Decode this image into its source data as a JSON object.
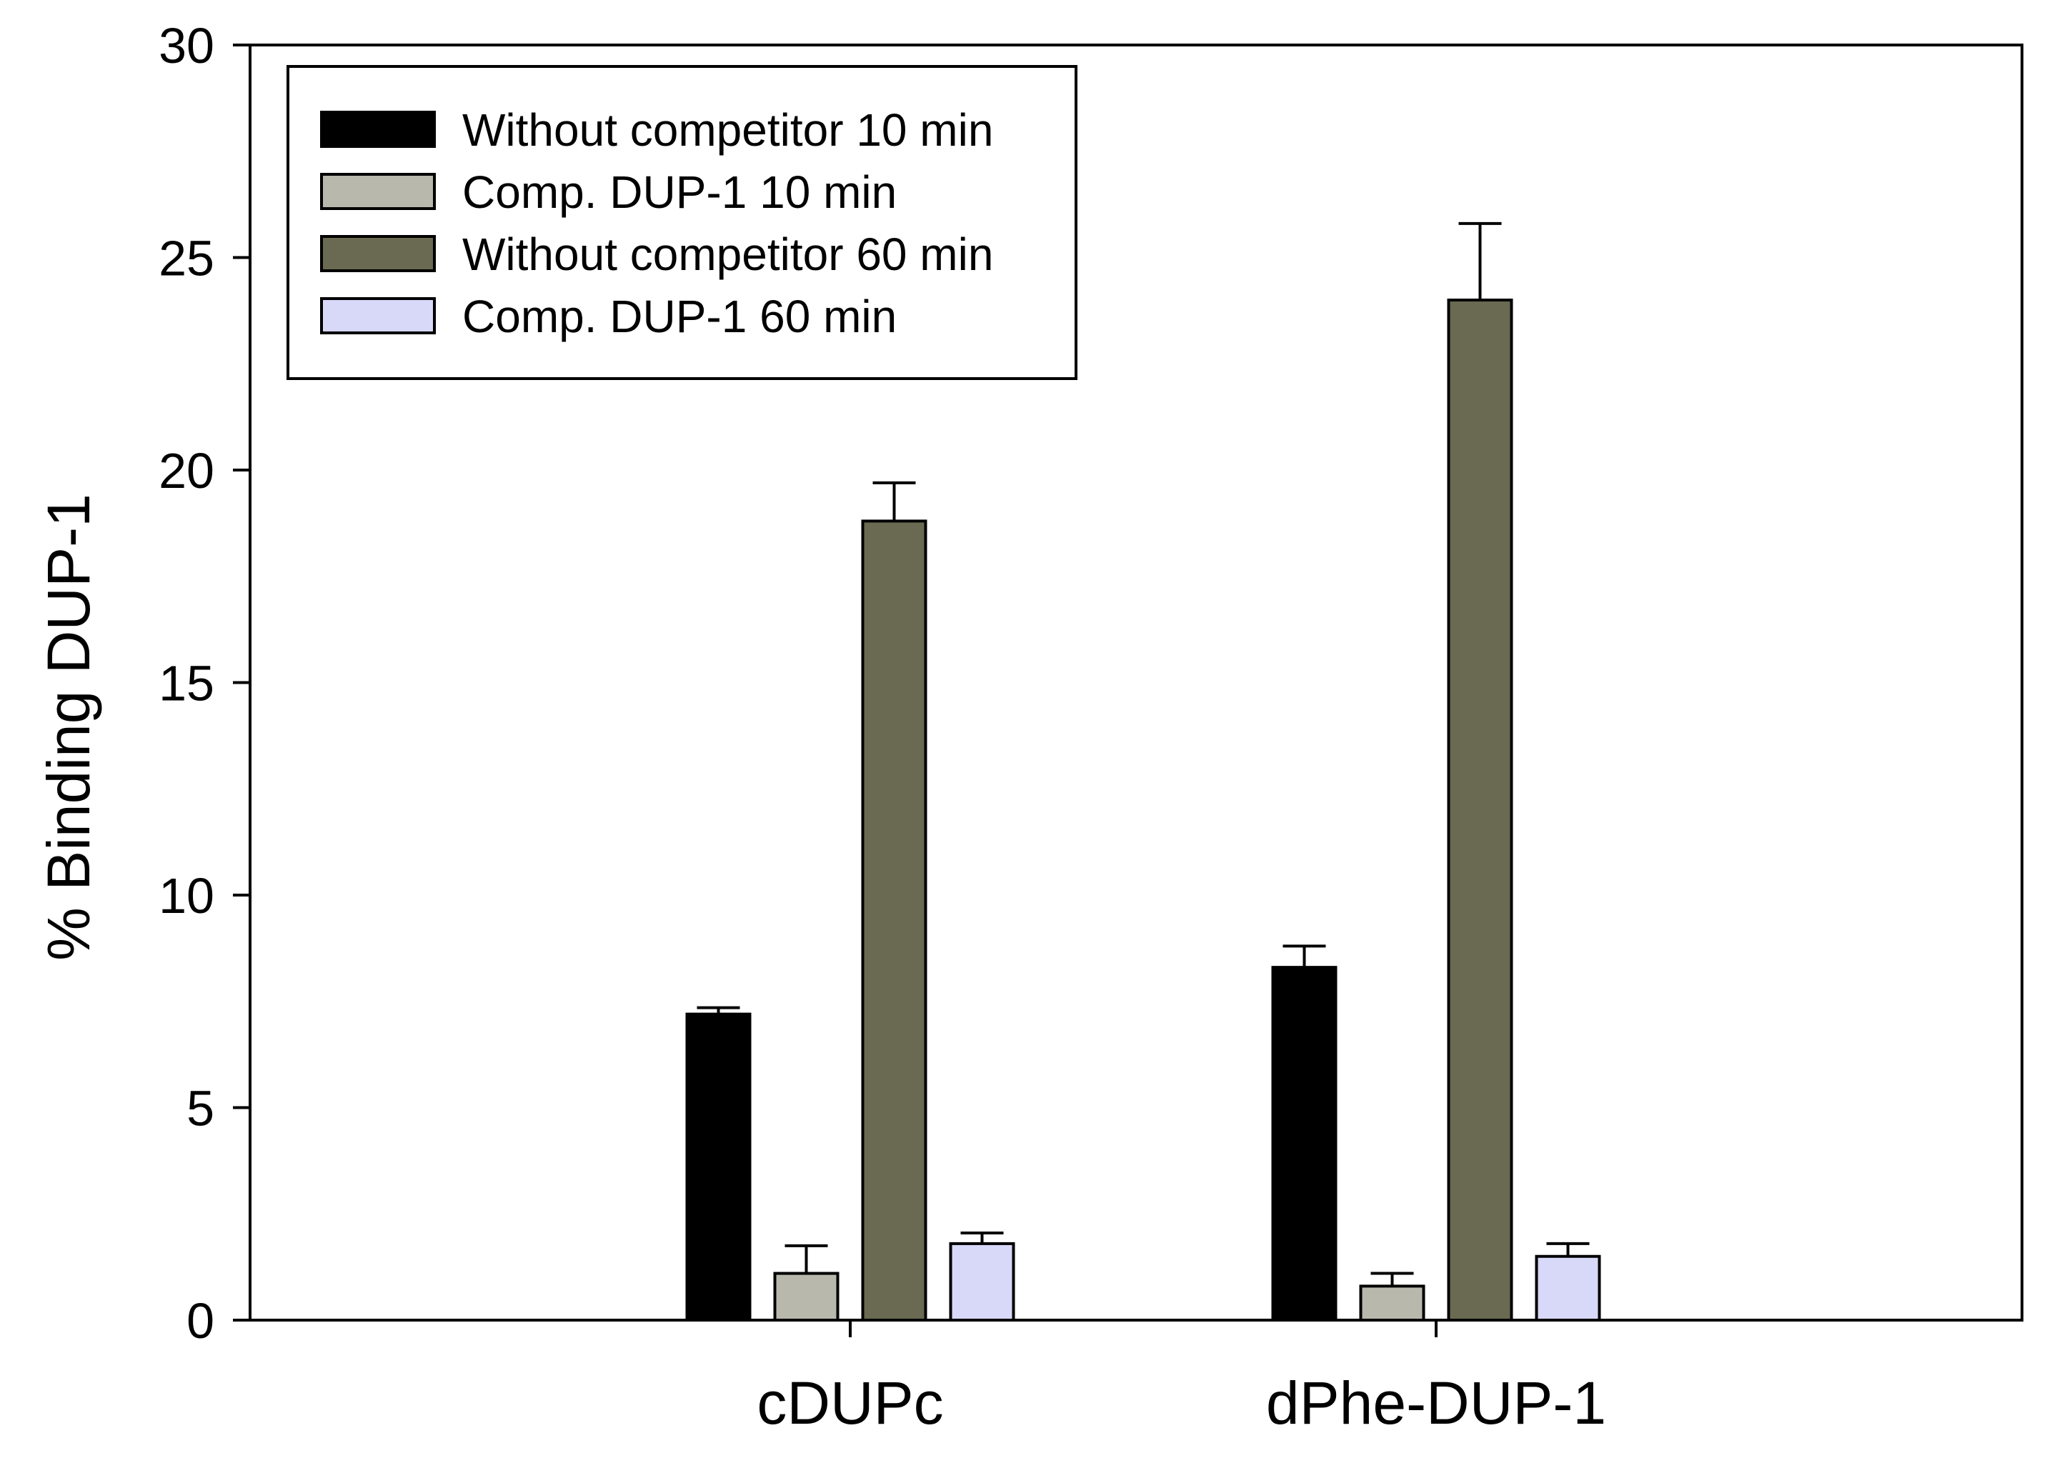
{
  "chart_data": {
    "type": "bar",
    "title": "",
    "xlabel": "",
    "ylabel": "% Binding DUP-1",
    "ylim": [
      0,
      30
    ],
    "yticks": [
      0,
      5,
      10,
      15,
      20,
      25,
      30
    ],
    "categories": [
      "cDUPc",
      "dPhe-DUP-1"
    ],
    "grid": false,
    "legend_position": "top-left",
    "series": [
      {
        "name": "Without competitor 10 min",
        "color": "#000000",
        "values": [
          7.2,
          8.3
        ],
        "errors": [
          0.15,
          0.5
        ]
      },
      {
        "name": "Comp. DUP-1 10 min",
        "color": "#b8b8ac",
        "values": [
          1.1,
          0.8
        ],
        "errors": [
          0.65,
          0.3
        ]
      },
      {
        "name": "Without competitor 60 min",
        "color": "#6a6a52",
        "values": [
          18.8,
          24.0
        ],
        "errors": [
          0.9,
          1.8
        ]
      },
      {
        "name": "Comp. DUP-1 60 min",
        "color": "#d8d8f8",
        "values": [
          1.8,
          1.5
        ],
        "errors": [
          0.25,
          0.3
        ]
      }
    ]
  }
}
